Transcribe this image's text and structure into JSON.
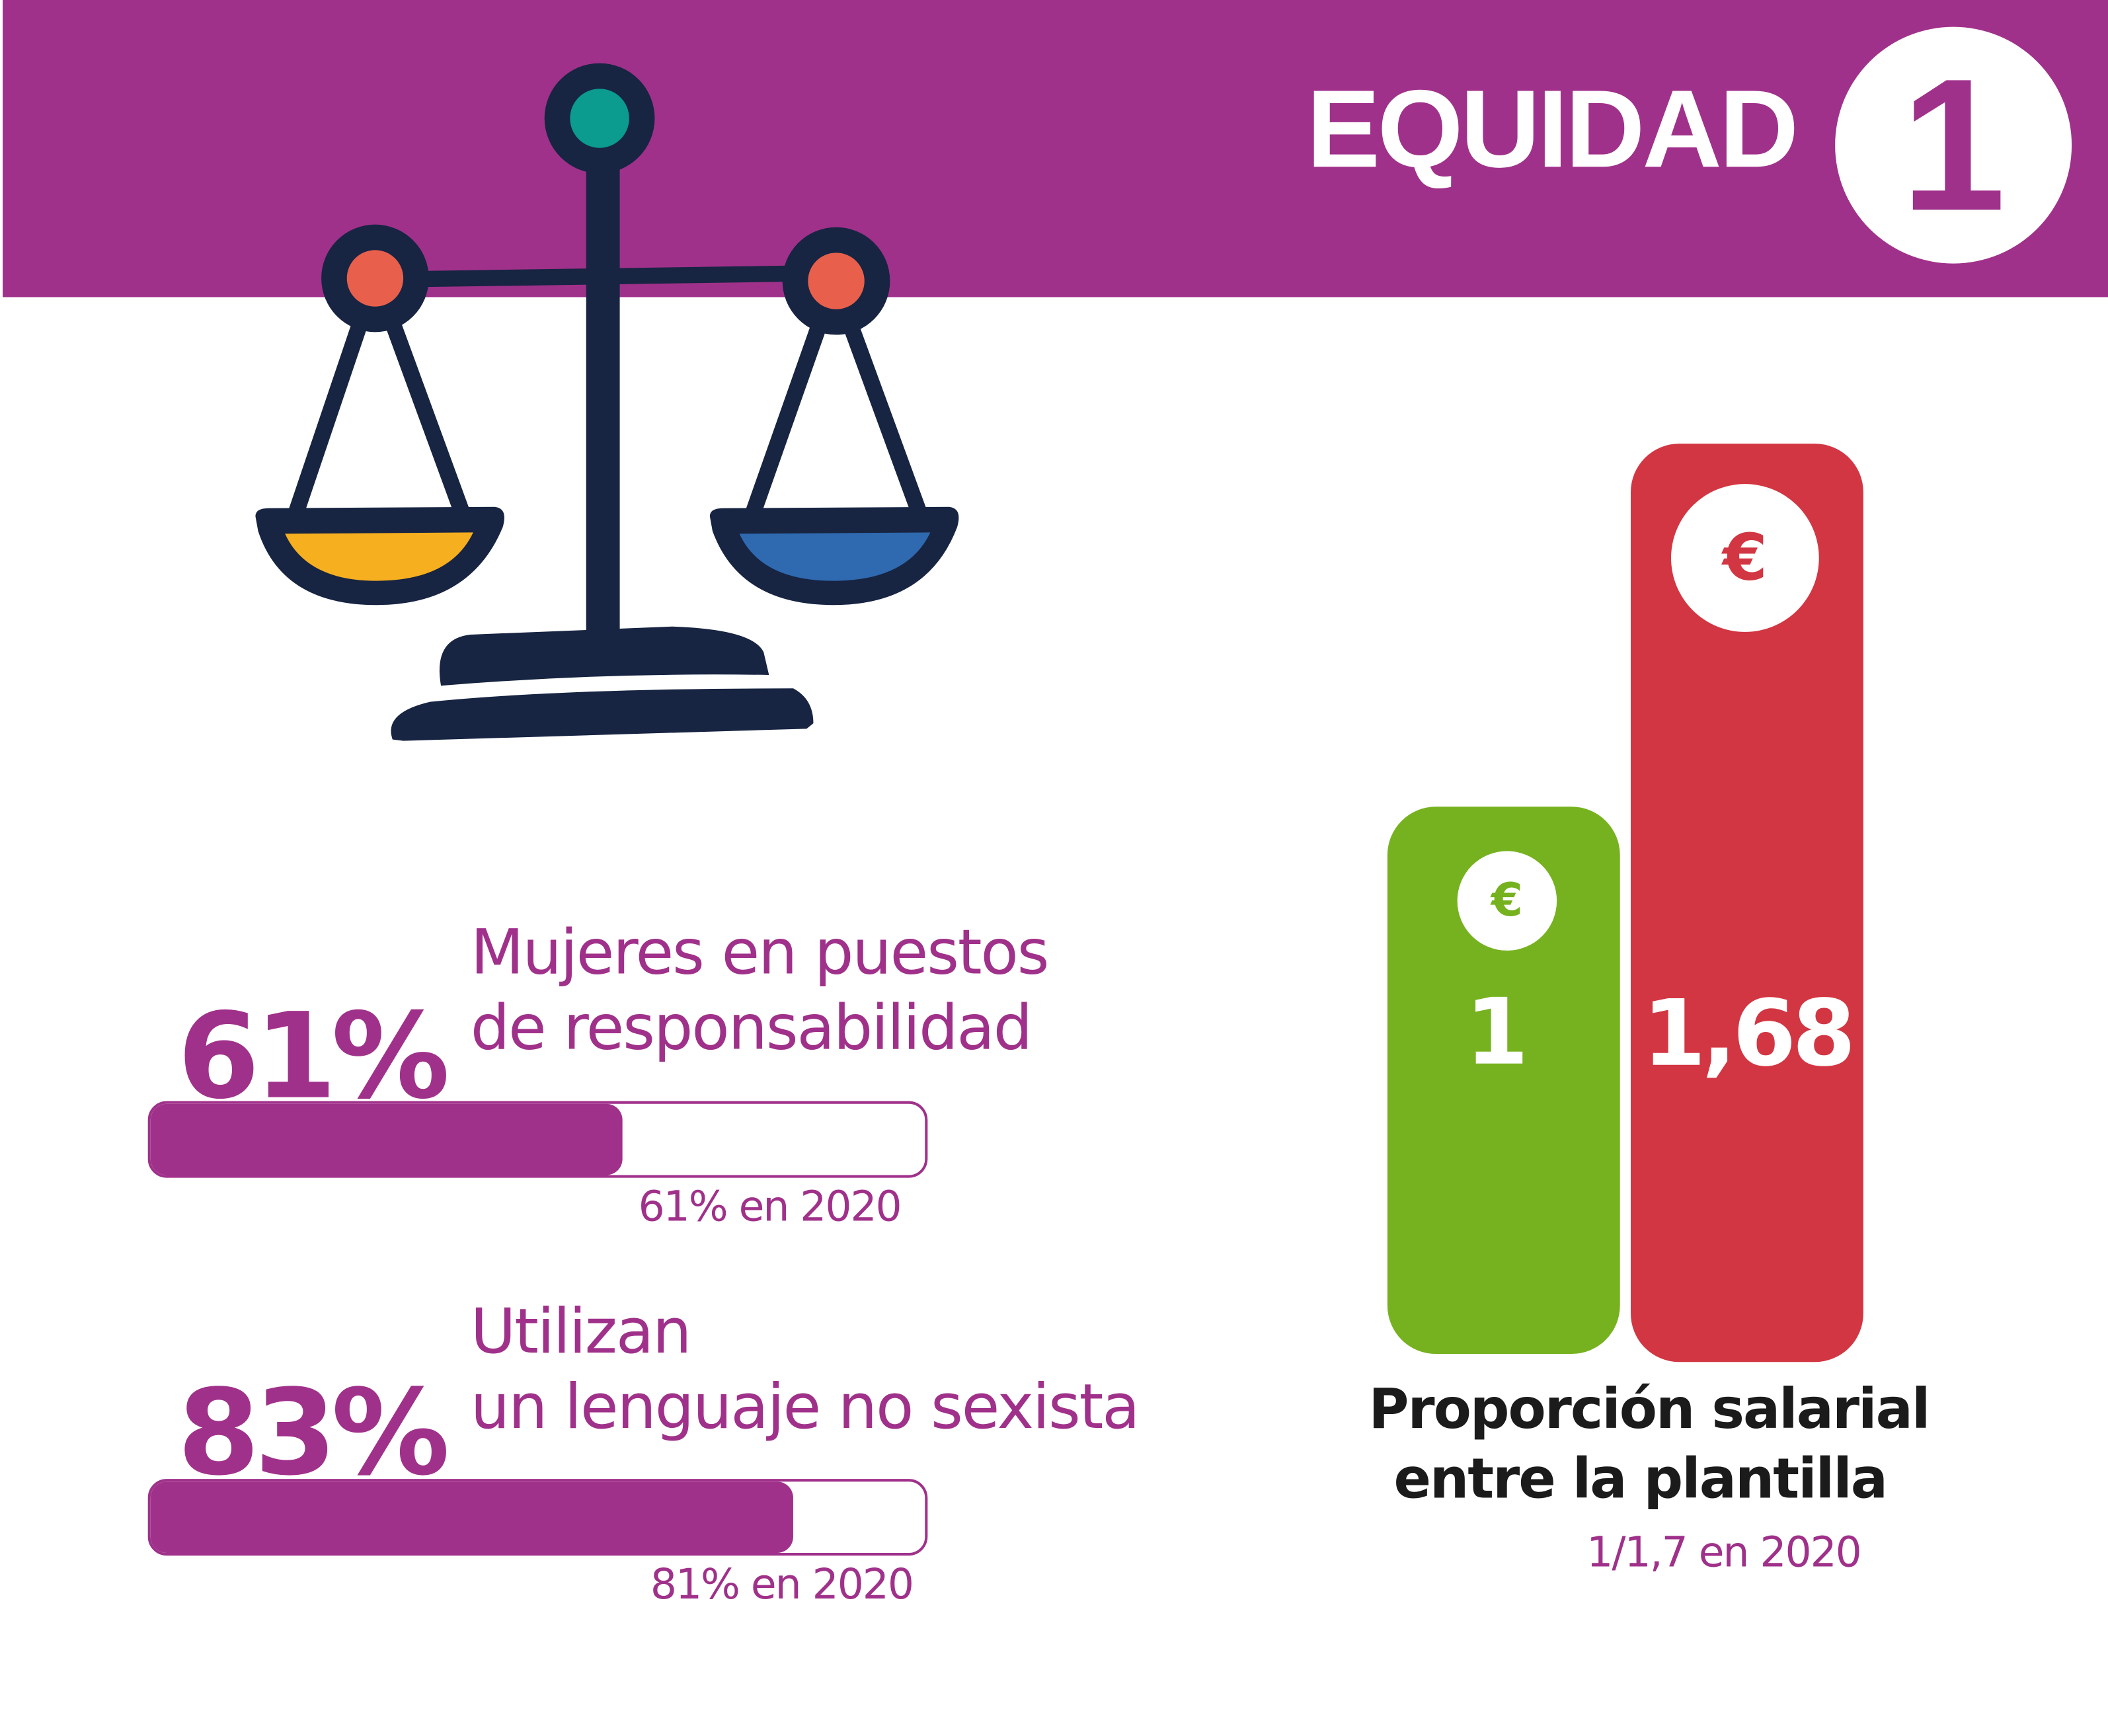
{
  "header": {
    "title": "EQUIDAD",
    "number": "1"
  },
  "colors": {
    "brand": "#A0318A",
    "green": "#76B21F",
    "red": "#D23642",
    "navy": "#172442",
    "teal": "#0B9B8F",
    "orange": "#E8604C",
    "yellow": "#F6AF1F",
    "blue": "#2F69AF"
  },
  "icons": {
    "illustration": "balance-scale-icon",
    "currency": "euro-icon"
  },
  "stats": [
    {
      "value": "61%",
      "label_lines": [
        "Mujeres en puestos",
        "de responsabilidad"
      ],
      "progress": 0.61,
      "previous": "61% en 2020"
    },
    {
      "value": "83%",
      "label_lines": [
        "Utilizan",
        "un lenguaje no sexista"
      ],
      "progress": 0.83,
      "previous": "81% en 2020"
    }
  ],
  "salary": {
    "bars": [
      {
        "value": "1",
        "ratio": 1,
        "euro": "€"
      },
      {
        "value": "1,68",
        "ratio": 1.68,
        "euro": "€"
      }
    ],
    "caption_lines": [
      "Proporción salarial",
      "entre la plantilla"
    ],
    "previous": "1/1,7 en 2020"
  }
}
